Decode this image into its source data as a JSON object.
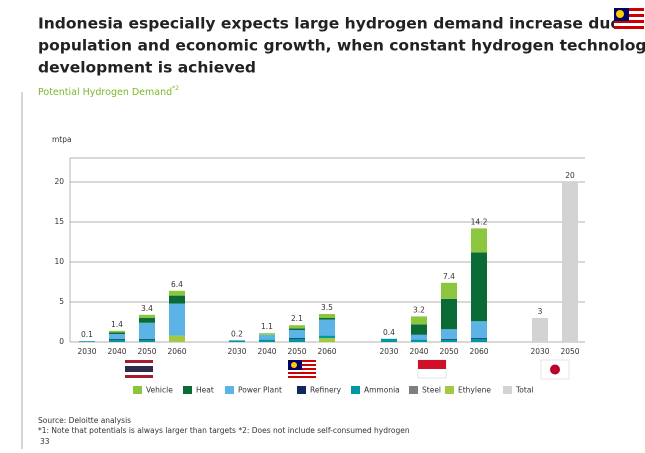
{
  "chart_data": {
    "type": "stacked_bar",
    "title_lines": [
      "Indonesia especially expects large hydrogen demand increase due to",
      "population and economic growth, when constant hydrogen technology",
      "development is achieved"
    ],
    "subtitle": "Potential Hydrogen Demand",
    "subtitle_note": "*2",
    "y_label": "mtpa",
    "categories": [
      "2030",
      "2040",
      "2050",
      "2060",
      "2030",
      "2040",
      "2050",
      "2060",
      "2030",
      "2040",
      "2050",
      "2060",
      "2030",
      "2050"
    ],
    "series": [
      {
        "name": "Vehicle",
        "color": "#8cc63e",
        "values": [
          null,
          0.2,
          0.4,
          0.6,
          null,
          0.2,
          0.4,
          0.5,
          null,
          1.0,
          2.0,
          3.0,
          null,
          null
        ]
      },
      {
        "name": "Heat",
        "color": "#0b6b37",
        "values": [
          null,
          0.2,
          0.6,
          1.0,
          null,
          null,
          0.2,
          0.2,
          null,
          1.3,
          3.8,
          8.6,
          null,
          null
        ]
      },
      {
        "name": "Power Plant",
        "color": "#5bb3e6",
        "values": [
          null,
          0.6,
          2.0,
          4.0,
          null,
          0.6,
          1.0,
          2.0,
          null,
          0.6,
          1.2,
          2.1,
          null,
          null
        ]
      },
      {
        "name": "Refinery",
        "color": "#0c2a5b",
        "values": [
          null,
          0.1,
          0.1,
          null,
          null,
          null,
          0.1,
          null,
          null,
          null,
          0.1,
          0.1,
          null,
          null
        ]
      },
      {
        "name": "Ammonia",
        "color": "#0097a3",
        "values": [
          0.1,
          0.3,
          0.3,
          null,
          0.2,
          0.3,
          0.4,
          0.3,
          0.4,
          0.3,
          0.3,
          0.4,
          null,
          null
        ]
      },
      {
        "name": "Steel",
        "color": "#7f7f7f",
        "values": [
          null,
          null,
          null,
          null,
          null,
          null,
          null,
          null,
          null,
          null,
          null,
          null,
          null,
          null
        ]
      },
      {
        "name": "Ethylene",
        "color": "#a3c940",
        "values": [
          null,
          null,
          null,
          0.8,
          null,
          null,
          null,
          0.5,
          null,
          null,
          null,
          null,
          null,
          null
        ]
      },
      {
        "name": "Total",
        "color": "#d3d3d3",
        "values": [
          null,
          null,
          null,
          null,
          null,
          null,
          null,
          null,
          null,
          null,
          null,
          null,
          3,
          20
        ]
      }
    ],
    "totals": [
      0.1,
      1.4,
      3.4,
      6.4,
      0.2,
      1.1,
      2.1,
      3.5,
      0.4,
      3.2,
      7.4,
      14.2,
      3,
      20
    ],
    "ylim": [
      0,
      23
    ],
    "yticks": [
      0,
      5,
      10,
      15,
      20
    ],
    "grid": true,
    "source": "Source: Deloitte analysis",
    "footnote": "*1: Note that potentials is always larger than targets *2: Does not include self-consumed hydrogen",
    "page_number": "33"
  }
}
